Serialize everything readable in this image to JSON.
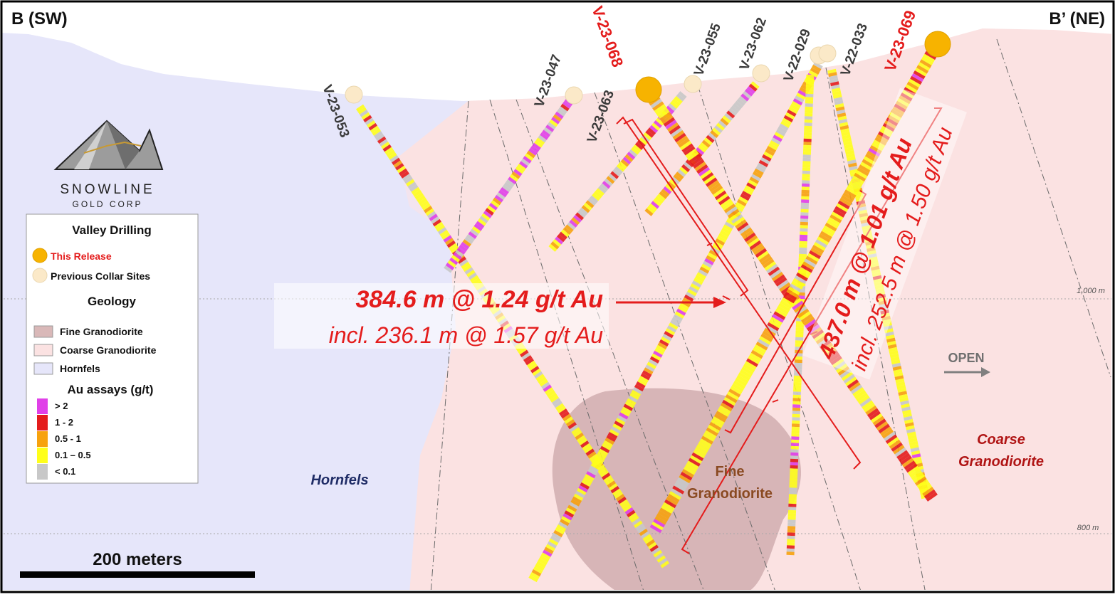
{
  "section": {
    "left_label": "B (SW)",
    "right_label": "B’ (NE)",
    "scale_label": "200 meters",
    "elev_1000": "1,000 m",
    "elev_800": "800 m",
    "open_label": "OPEN"
  },
  "logo": {
    "name": "SNOWLINE",
    "sub": "GOLD CORP"
  },
  "legend": {
    "title": "Valley Drilling",
    "this_release": "This Release",
    "previous": "Previous Collar Sites",
    "geology_title": "Geology",
    "geology": [
      {
        "label": "Fine Granodiorite",
        "color": "#d9b8b8"
      },
      {
        "label": "Coarse Granodiorite",
        "color": "#fbe2e2"
      },
      {
        "label": "Hornfels",
        "color": "#e6e6fa"
      }
    ],
    "assay_title": "Au assays (g/t)",
    "assays": [
      {
        "label": "> 2",
        "color": "#e040e8"
      },
      {
        "label": "1 - 2",
        "color": "#e41c1c"
      },
      {
        "label": "0.5 - 1",
        "color": "#f7a20e"
      },
      {
        "label": "0.1 – 0.5",
        "color": "#ffff1a"
      },
      {
        "label": "< 0.1",
        "color": "#c8c8c8"
      }
    ]
  },
  "holes": [
    {
      "id": "V-23-053",
      "status": "previous"
    },
    {
      "id": "V-23-047",
      "status": "previous"
    },
    {
      "id": "V-23-068",
      "status": "this release"
    },
    {
      "id": "V-23-063",
      "status": "previous"
    },
    {
      "id": "V-23-055",
      "status": "previous"
    },
    {
      "id": "V-23-062",
      "status": "previous"
    },
    {
      "id": "V-22-029",
      "status": "previous"
    },
    {
      "id": "V-22-033",
      "status": "previous"
    },
    {
      "id": "V-23-069",
      "status": "this release"
    }
  ],
  "intercepts": {
    "i068_main": "384.6 m @ 1.24 g/t Au",
    "i068_incl": "incl. 236.1 m @ 1.57 g/t Au",
    "i069_main": "437.0 m @ 1.01 g/t Au",
    "i069_incl": "incl. 252.5 m @ 1.50 g/t Au"
  },
  "geology_labels": {
    "hornfels": "Hornfels",
    "fine_1": "Fine",
    "fine_2": "Granodiorite",
    "coarse_1": "Coarse",
    "coarse_2": "Granodiorite"
  },
  "colors": {
    "hornfels": "#e6e6fa",
    "coarse": "#fbe2e2",
    "fine": "#d9b8b8",
    "highlight": "#e41c1c",
    "collar_new": "#f7b300",
    "collar_prev": "#fbe9c8"
  }
}
